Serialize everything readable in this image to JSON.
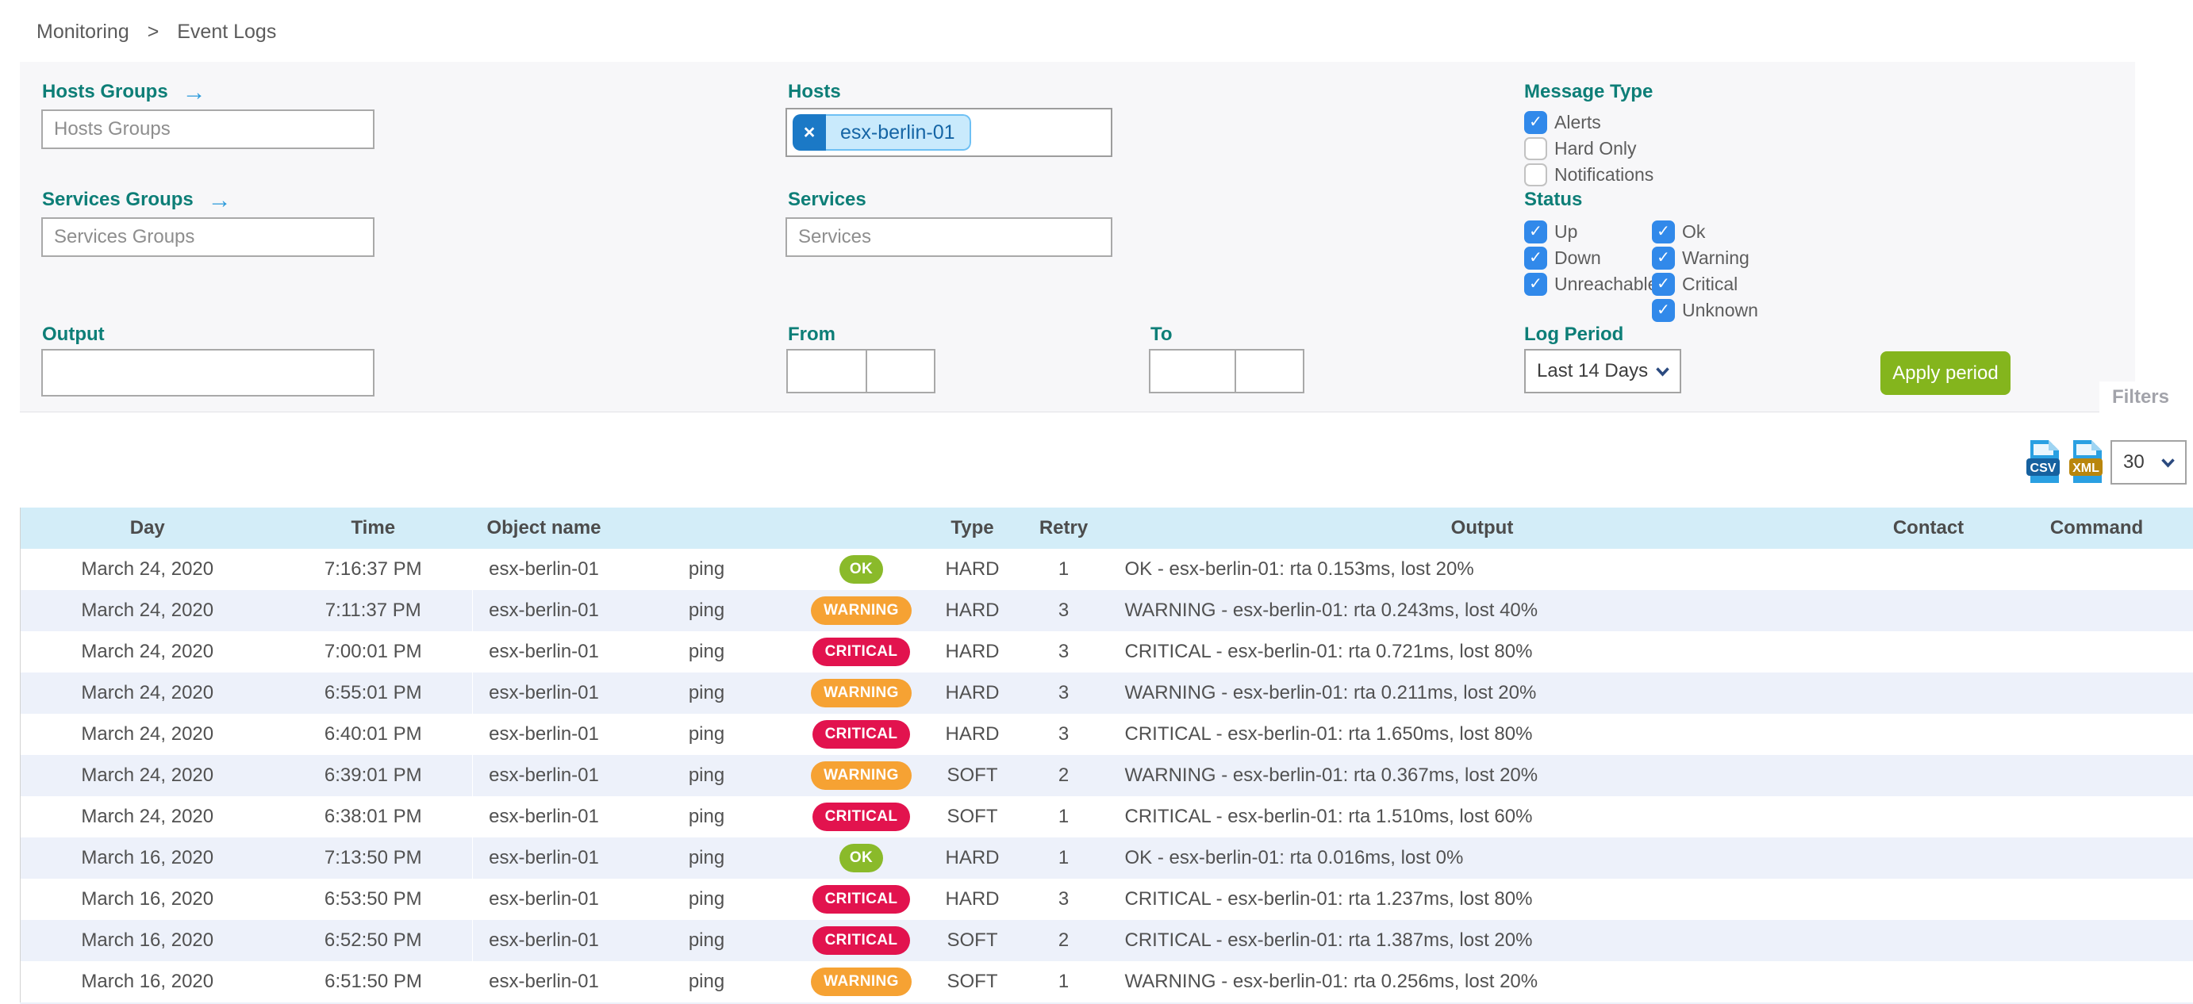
{
  "breadcrumb": {
    "items": [
      "Monitoring",
      "Event Logs"
    ],
    "separator": ">"
  },
  "icons": {
    "arrow_right": "→",
    "chip_remove": "×",
    "check": "✓"
  },
  "filters": {
    "hosts_groups": {
      "label": "Hosts Groups",
      "placeholder": "Hosts Groups"
    },
    "hosts": {
      "label": "Hosts",
      "selected": "esx-berlin-01"
    },
    "services_groups": {
      "label": "Services Groups",
      "placeholder": "Services Groups"
    },
    "services": {
      "label": "Services",
      "placeholder": "Services"
    },
    "message_type": {
      "label": "Message Type",
      "options": [
        {
          "label": "Alerts",
          "checked": true
        },
        {
          "label": "Hard Only",
          "checked": false
        },
        {
          "label": "Notifications",
          "checked": false
        }
      ]
    },
    "status": {
      "label": "Status",
      "groups": [
        [
          {
            "label": "Up",
            "checked": true
          },
          {
            "label": "Down",
            "checked": true
          },
          {
            "label": "Unreachable",
            "checked": true
          }
        ],
        [
          {
            "label": "Ok",
            "checked": true
          },
          {
            "label": "Warning",
            "checked": true
          },
          {
            "label": "Critical",
            "checked": true
          },
          {
            "label": "Unknown",
            "checked": true
          }
        ]
      ]
    },
    "output": {
      "label": "Output",
      "value": ""
    },
    "from": {
      "label": "From",
      "date": "",
      "time": ""
    },
    "to": {
      "label": "To",
      "date": "",
      "time": ""
    },
    "log_period": {
      "label": "Log Period",
      "value": "Last 14 Days"
    },
    "apply_label": "Apply period",
    "filters_tab": "Filters"
  },
  "toolbar": {
    "csv_label": "CSV",
    "xml_label": "XML",
    "page_size": "30"
  },
  "table": {
    "columns": [
      "Day",
      "Time",
      "Object name",
      "",
      "",
      "Type",
      "Retry",
      "Output",
      "Contact",
      "Command"
    ],
    "rows": [
      {
        "day": "March 24, 2020",
        "time": "7:16:37 PM",
        "object": "esx-berlin-01",
        "service": "ping",
        "status": "OK",
        "type": "HARD",
        "retry": "1",
        "output": "OK - esx-berlin-01: rta 0.153ms, lost 20%",
        "contact": "",
        "command": ""
      },
      {
        "day": "March 24, 2020",
        "time": "7:11:37 PM",
        "object": "esx-berlin-01",
        "service": "ping",
        "status": "WARNING",
        "type": "HARD",
        "retry": "3",
        "output": "WARNING - esx-berlin-01: rta 0.243ms, lost 40%",
        "contact": "",
        "command": ""
      },
      {
        "day": "March 24, 2020",
        "time": "7:00:01 PM",
        "object": "esx-berlin-01",
        "service": "ping",
        "status": "CRITICAL",
        "type": "HARD",
        "retry": "3",
        "output": "CRITICAL - esx-berlin-01: rta 0.721ms, lost 80%",
        "contact": "",
        "command": ""
      },
      {
        "day": "March 24, 2020",
        "time": "6:55:01 PM",
        "object": "esx-berlin-01",
        "service": "ping",
        "status": "WARNING",
        "type": "HARD",
        "retry": "3",
        "output": "WARNING - esx-berlin-01: rta 0.211ms, lost 20%",
        "contact": "",
        "command": ""
      },
      {
        "day": "March 24, 2020",
        "time": "6:40:01 PM",
        "object": "esx-berlin-01",
        "service": "ping",
        "status": "CRITICAL",
        "type": "HARD",
        "retry": "3",
        "output": "CRITICAL - esx-berlin-01: rta 1.650ms, lost 80%",
        "contact": "",
        "command": ""
      },
      {
        "day": "March 24, 2020",
        "time": "6:39:01 PM",
        "object": "esx-berlin-01",
        "service": "ping",
        "status": "WARNING",
        "type": "SOFT",
        "retry": "2",
        "output": "WARNING - esx-berlin-01: rta 0.367ms, lost 20%",
        "contact": "",
        "command": ""
      },
      {
        "day": "March 24, 2020",
        "time": "6:38:01 PM",
        "object": "esx-berlin-01",
        "service": "ping",
        "status": "CRITICAL",
        "type": "SOFT",
        "retry": "1",
        "output": "CRITICAL - esx-berlin-01: rta 1.510ms, lost 60%",
        "contact": "",
        "command": ""
      },
      {
        "day": "March 16, 2020",
        "time": "7:13:50 PM",
        "object": "esx-berlin-01",
        "service": "ping",
        "status": "OK",
        "type": "HARD",
        "retry": "1",
        "output": "OK - esx-berlin-01: rta 0.016ms, lost 0%",
        "contact": "",
        "command": ""
      },
      {
        "day": "March 16, 2020",
        "time": "6:53:50 PM",
        "object": "esx-berlin-01",
        "service": "ping",
        "status": "CRITICAL",
        "type": "HARD",
        "retry": "3",
        "output": "CRITICAL - esx-berlin-01: rta 1.237ms, lost 80%",
        "contact": "",
        "command": ""
      },
      {
        "day": "March 16, 2020",
        "time": "6:52:50 PM",
        "object": "esx-berlin-01",
        "service": "ping",
        "status": "CRITICAL",
        "type": "SOFT",
        "retry": "2",
        "output": "CRITICAL - esx-berlin-01: rta 1.387ms, lost 20%",
        "contact": "",
        "command": ""
      },
      {
        "day": "March 16, 2020",
        "time": "6:51:50 PM",
        "object": "esx-berlin-01",
        "service": "ping",
        "status": "WARNING",
        "type": "SOFT",
        "retry": "1",
        "output": "WARNING - esx-berlin-01: rta 0.256ms, lost 20%",
        "contact": "",
        "command": ""
      }
    ]
  },
  "colors": {
    "accent_teal": "#0d7e77",
    "apply_green": "#84b51d",
    "ok_green": "#8aba2a",
    "warning_orange": "#f6a233",
    "critical_red": "#e2134e",
    "checkbox_blue": "#3189ea",
    "table_header_blue": "#d3edf8",
    "row_alt": "#edf1fa",
    "chip_blue": "#c9eafc"
  }
}
